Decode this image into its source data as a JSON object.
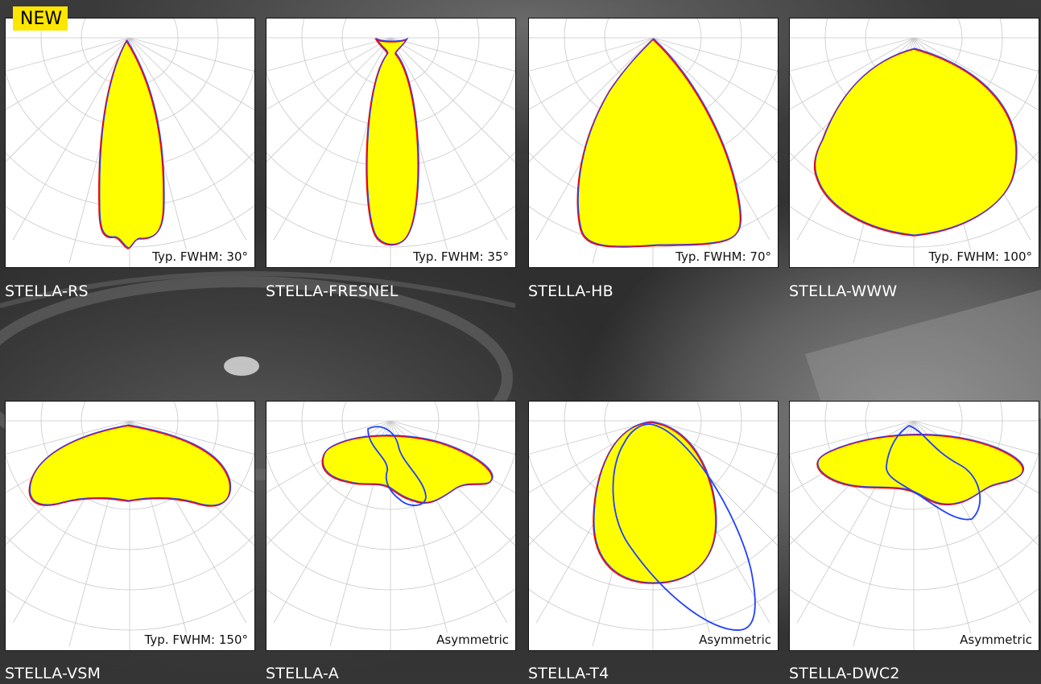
{
  "badge": "NEW",
  "colors": {
    "fill": "#ffff00",
    "stroke_a": "#ff0000",
    "stroke_b": "#2040ff",
    "grid": "#c8c8c8"
  },
  "products": [
    {
      "name": "STELLA-RS",
      "beam": "Typ. FWHM: 30°",
      "shape": "rs"
    },
    {
      "name": "STELLA-FRESNEL",
      "beam": "Typ. FWHM: 35°",
      "shape": "fresnel"
    },
    {
      "name": "STELLA-HB",
      "beam": "Typ. FWHM: 70°",
      "shape": "hb"
    },
    {
      "name": "STELLA-WWW",
      "beam": "Typ. FWHM: 100°",
      "shape": "www"
    },
    {
      "name": "STELLA-VSM",
      "beam": "Typ. FWHM: 150°",
      "shape": "vsm"
    },
    {
      "name": "STELLA-A",
      "beam": "Asymmetric",
      "shape": "a"
    },
    {
      "name": "STELLA-T4",
      "beam": "Asymmetric",
      "shape": "t4"
    },
    {
      "name": "STELLA-DWC2",
      "beam": "Asymmetric",
      "shape": "dwc2"
    }
  ]
}
